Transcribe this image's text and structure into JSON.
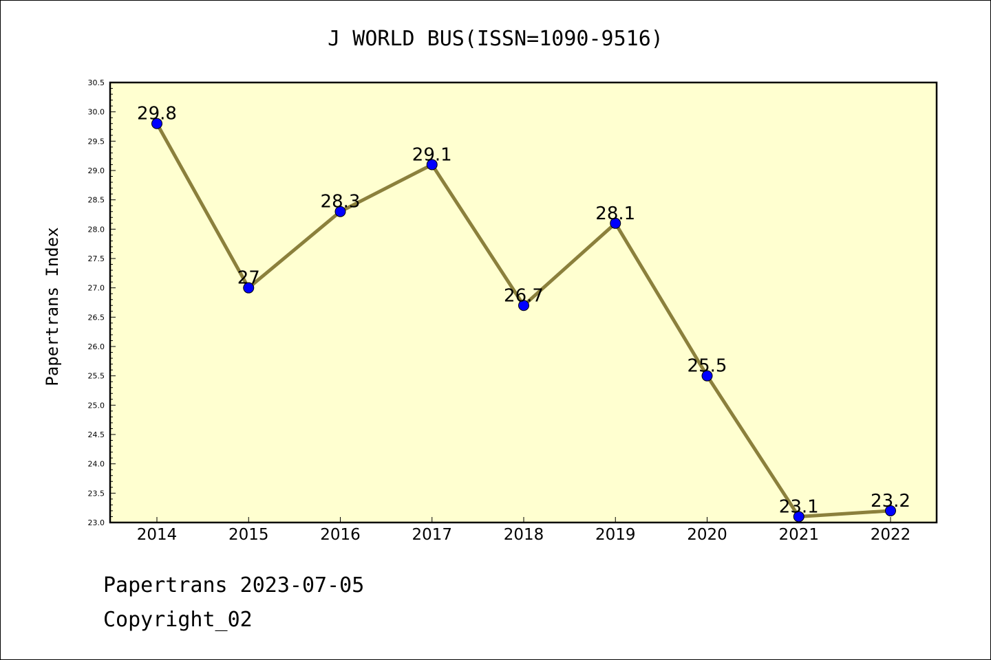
{
  "chart_data": {
    "type": "line",
    "title": "J WORLD BUS(ISSN=1090-9516)",
    "xlabel": "",
    "ylabel": "Papertrans Index",
    "categories": [
      "2014",
      "2015",
      "2016",
      "2017",
      "2018",
      "2019",
      "2020",
      "2021",
      "2022"
    ],
    "series": [
      {
        "values": [
          29.8,
          27,
          28.3,
          29.1,
          26.7,
          28.1,
          25.5,
          23.1,
          23.2
        ],
        "labels": [
          "29.8",
          "27",
          "28.3",
          "29.1",
          "26.7",
          "28.1",
          "25.5",
          "23.1",
          "23.2"
        ]
      }
    ],
    "ylim": [
      23.0,
      30.5
    ],
    "yticks": [
      "23.0",
      "23.5",
      "24.0",
      "24.5",
      "25.0",
      "25.5",
      "26.0",
      "26.5",
      "27.0",
      "27.5",
      "28.0",
      "28.5",
      "29.0",
      "29.5",
      "30.0",
      "30.5"
    ],
    "grid": false,
    "colors": {
      "plot_background": "#ffffd0",
      "line": "#8b803c",
      "marker": "#0000ff"
    }
  },
  "footer": {
    "line1": "Papertrans 2023-07-05",
    "line2": "Copyright_02"
  }
}
